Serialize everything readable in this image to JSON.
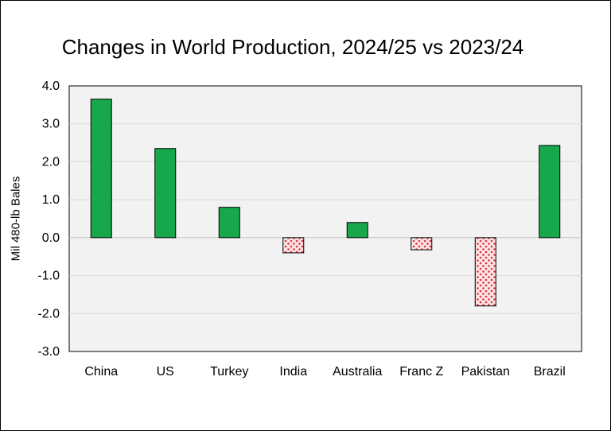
{
  "chart_data": {
    "type": "bar",
    "title": "Changes in World Production, 2024/25 vs 2023/24",
    "xlabel": "",
    "ylabel": "Mil 480-lb Bales",
    "categories": [
      "China",
      "US",
      "Turkey",
      "India",
      "Australia",
      "Franc Z",
      "Pakistan",
      "Brazil"
    ],
    "values": [
      3.65,
      2.35,
      0.8,
      -0.4,
      0.4,
      -0.32,
      -1.8,
      2.43
    ],
    "ylim": [
      -3.0,
      4.0
    ],
    "yticks": [
      "4.0",
      "3.0",
      "2.0",
      "1.0",
      "0.0",
      "-1.0",
      "-2.0",
      "-3.0"
    ],
    "grid": true,
    "colors": {
      "positive": "#18a84c",
      "negative_fill": "#fde4e4",
      "negative_dots": "#d9343c",
      "plot_background": "#f2f2f2",
      "gridline": "#d9d9d9"
    }
  }
}
